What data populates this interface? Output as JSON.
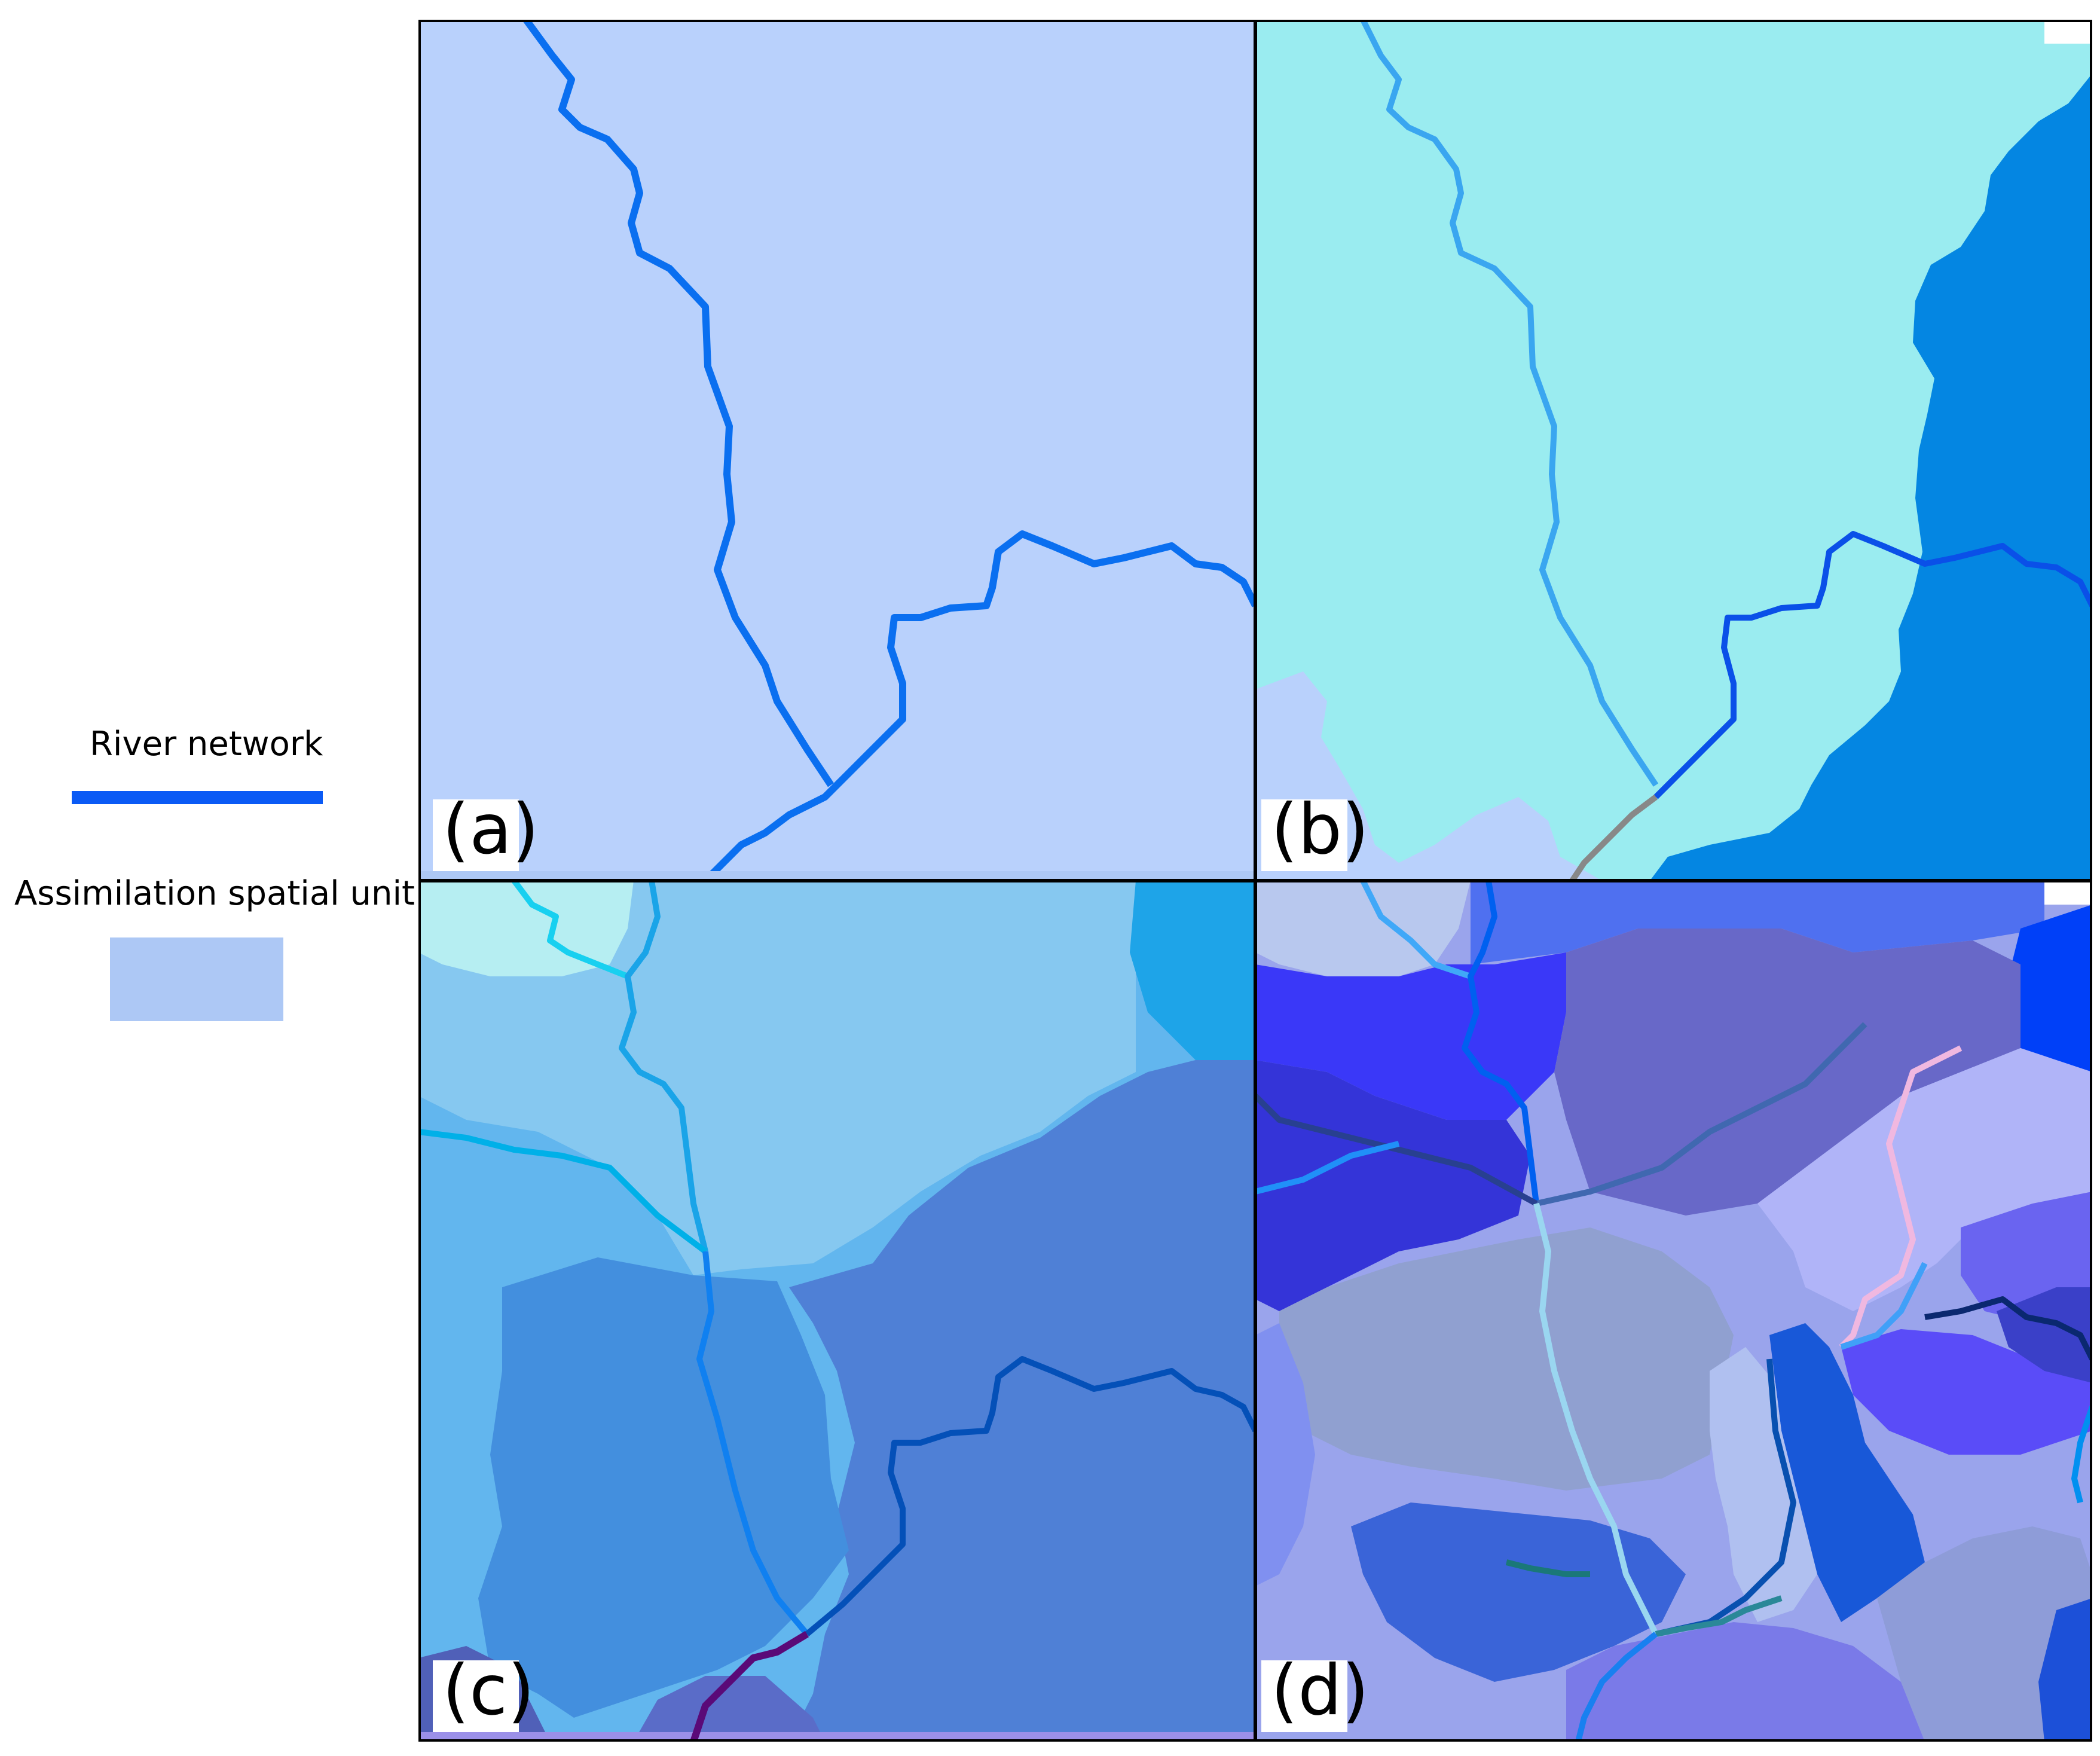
{
  "legend": {
    "river_label": "River network",
    "unit_label": "Assimilation spatial unit",
    "river_color": "#0a5af5",
    "unit_color": "#adc8f5"
  },
  "panels": [
    {
      "id": "a",
      "label": "(a)",
      "units": "single spatial unit"
    },
    {
      "id": "b",
      "label": "(b)",
      "units": "two spatial units"
    },
    {
      "id": "c",
      "label": "(c)",
      "units": "several spatial units"
    },
    {
      "id": "d",
      "label": "(d)",
      "units": "many spatial units"
    }
  ],
  "colors": {
    "panel_a_fill": "#b9d1fc",
    "panel_b_left": "#9aecf0",
    "panel_b_right": "#0486e2",
    "river_main": "#0a6ff0"
  }
}
